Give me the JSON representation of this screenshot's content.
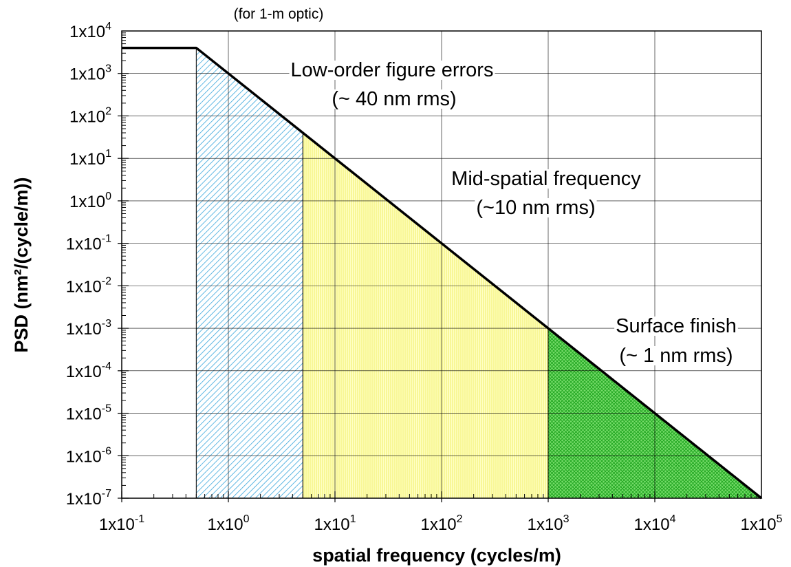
{
  "chart_data": {
    "type": "area",
    "title": "",
    "subtitle": "(for 1-m optic)",
    "xlabel": "spatial frequency (cycles/m)",
    "ylabel": "PSD (nm²/(cycle/m))",
    "xscale": "log",
    "yscale": "log",
    "xlim": [
      0.1,
      100000
    ],
    "ylim": [
      1e-07,
      10000
    ],
    "grid": true,
    "legend": "none",
    "x_tick_labels": [
      "1x10-1",
      "1x100",
      "1x101",
      "1x102",
      "1x103",
      "1x104",
      "1x105"
    ],
    "y_tick_labels": [
      "1x104",
      "1x103",
      "1x102",
      "1x101",
      "1x100",
      "1x10-1",
      "1x10-2",
      "1x10-3",
      "1x10-4",
      "1x10-5",
      "1x10-6",
      "1x10-7"
    ],
    "psd_curve": {
      "x": [
        0.1,
        0.5,
        100000
      ],
      "y": [
        4000,
        4000,
        1e-07
      ]
    },
    "regions": [
      {
        "label": "Low-order figure errors",
        "sublabel": "(~ 40 nm rms)",
        "x_range": [
          0.5,
          5
        ],
        "color": "#5bbde6",
        "pattern": "diagonal-hatch"
      },
      {
        "label": "Mid-spatial frequency",
        "sublabel": "(~10 nm rms)",
        "x_range": [
          5,
          1000
        ],
        "color": "#ffff99",
        "pattern": "fine-vertical"
      },
      {
        "label": "Surface finish",
        "sublabel": "(~ 1 nm rms)",
        "x_range": [
          1000,
          100000
        ],
        "color": "#33cc33",
        "pattern": "cross-hatch"
      }
    ]
  },
  "colors": {
    "background": "#ffffff",
    "axis": "#000000",
    "grid": "#000000",
    "curve": "#000000"
  }
}
